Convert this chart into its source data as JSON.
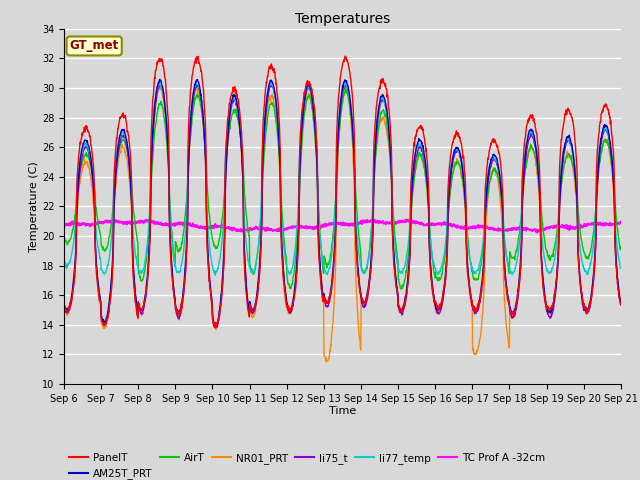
{
  "title": "Temperatures",
  "xlabel": "Time",
  "ylabel": "Temperature (C)",
  "ylim": [
    10,
    34
  ],
  "yticks": [
    10,
    12,
    14,
    16,
    18,
    20,
    22,
    24,
    26,
    28,
    30,
    32,
    34
  ],
  "xlim_days": [
    0,
    15
  ],
  "x_tick_labels": [
    "Sep 6",
    "Sep 7",
    "Sep 8",
    "Sep 9",
    "Sep 10",
    "Sep 11",
    "Sep 12",
    "Sep 13",
    "Sep 14",
    "Sep 15",
    "Sep 16",
    "Sep 17",
    "Sep 18",
    "Sep 19",
    "Sep 20",
    "Sep 21"
  ],
  "annotation_text": "GT_met",
  "annotation_color": "#8B0000",
  "annotation_bg": "#FFFFCC",
  "annotation_border": "#8B8B00",
  "series": {
    "PanelT": {
      "color": "#FF0000",
      "lw": 1.0
    },
    "AM25T_PRT": {
      "color": "#0000CC",
      "lw": 1.0
    },
    "AirT": {
      "color": "#00CC00",
      "lw": 1.0
    },
    "NR01_PRT": {
      "color": "#FF8800",
      "lw": 1.0
    },
    "li75_t": {
      "color": "#8800CC",
      "lw": 1.0
    },
    "li77_temp": {
      "color": "#00CCCC",
      "lw": 1.0
    },
    "TC Prof A -32cm": {
      "color": "#FF00FF",
      "lw": 1.5
    }
  },
  "plot_bg_color": "#D8D8D8",
  "grid_color": "#FFFFFF",
  "title_fontsize": 10,
  "axis_fontsize": 8,
  "tick_fontsize": 7,
  "legend_fontsize": 7.5
}
